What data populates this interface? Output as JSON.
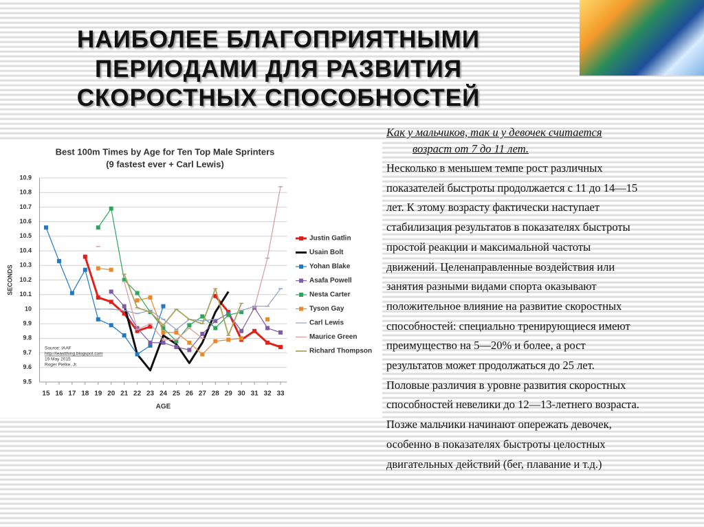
{
  "slide": {
    "title": [
      "НАИБОЛЕЕ БЛАГОПРИЯТНЫМИ",
      "ПЕРИОДАМИ ДЛЯ РАЗВИТИЯ",
      "СКОРОСТНЫХ СПОСОБНОСТЕЙ"
    ]
  },
  "text": {
    "intro": [
      "Как у мальчиков, так и у девочек считается",
      "возраст от 7 до 11 лет."
    ],
    "lines": [
      "Несколько в меньшем темпе рост различных",
      "показателей быстроты продолжается с 11 до 14—15",
      "лет.  К этому возрасту фактически наступает",
      "стабилизация результатов в показателях быстроты",
      "простой реакции и максимальной частоты",
      "движений.  Целенаправленные воздействия или",
      "занятия разными видами спорта оказывают",
      "положительное влияние на развитие скоростных",
      "способностей: специально тренирующиеся имеют",
      "преимущество на 5—20% и более, а рост",
      "результатов может продолжаться до 25 лет.",
      "Половые различия в уровне развития скоростных",
      "способностей невелики до 12—13-летнего возраста.",
      "Позже мальчики начинают опережать девочек,",
      "особенно в показателях быстроты целостных",
      "двигательных действий (бег, плавание и т.д.)"
    ]
  },
  "chart_data": {
    "type": "line",
    "title": "Best 100m Times by Age for Ten Top Male Sprinters",
    "subtitle": "(9 fastest ever + Carl Lewis)",
    "y_label": "SECONDS",
    "x_label": "AGE",
    "source": [
      "Source: IAAF",
      "http://leastthing.blogspot.com",
      "19 May 2015",
      "Roger Pielke, Jr."
    ],
    "x": [
      15,
      16,
      17,
      18,
      19,
      20,
      21,
      22,
      23,
      24,
      25,
      26,
      27,
      28,
      29,
      30,
      31,
      32,
      33
    ],
    "xlim": [
      14.5,
      33.5
    ],
    "xticks": [
      15,
      16,
      17,
      18,
      19,
      20,
      21,
      22,
      23,
      24,
      25,
      26,
      27,
      28,
      29,
      30,
      31,
      32,
      33
    ],
    "ylim": [
      9.5,
      10.9
    ],
    "yticks": [
      9.5,
      9.6,
      9.7,
      9.8,
      9.9,
      10,
      10.1,
      10.2,
      10.3,
      10.4,
      10.5,
      10.6,
      10.7,
      10.8,
      10.9
    ],
    "grid": true,
    "series": [
      {
        "name": "Justin Gatlin",
        "color": "#e0201b",
        "marker": "square",
        "width": 3,
        "values": [
          null,
          null,
          null,
          10.36,
          10.08,
          10.05,
          9.97,
          9.85,
          9.88,
          null,
          null,
          null,
          null,
          10.09,
          9.98,
          9.79,
          9.85,
          9.77,
          9.74
        ]
      },
      {
        "name": "Usain Bolt",
        "color": "#111111",
        "marker": "none",
        "width": 3,
        "values": [
          null,
          null,
          null,
          null,
          null,
          null,
          10.03,
          9.69,
          9.58,
          9.82,
          9.76,
          9.63,
          9.77,
          9.98,
          10.12,
          null,
          null,
          null,
          null
        ]
      },
      {
        "name": "Yohan Blake",
        "color": "#2179c2",
        "marker": "square",
        "width": 1.2,
        "values": [
          10.56,
          10.33,
          10.11,
          10.27,
          9.93,
          9.89,
          9.82,
          9.69,
          9.75,
          10.02,
          null,
          null,
          null,
          null,
          null,
          null,
          null,
          null,
          null
        ]
      },
      {
        "name": "Asafa Powell",
        "color": "#7d5ba6",
        "marker": "square",
        "width": 1.2,
        "values": [
          null,
          null,
          null,
          null,
          null,
          10.12,
          10.02,
          9.87,
          9.77,
          9.77,
          9.74,
          9.72,
          9.83,
          9.92,
          9.97,
          9.85,
          10.01,
          9.87,
          9.84
        ]
      },
      {
        "name": "Nesta Carter",
        "color": "#2da55a",
        "marker": "square",
        "width": 1.2,
        "values": [
          null,
          null,
          null,
          null,
          10.56,
          10.69,
          10.2,
          10.11,
          9.98,
          9.87,
          9.78,
          9.89,
          9.95,
          9.87,
          9.96,
          9.98,
          null,
          null,
          null
        ]
      },
      {
        "name": "Tyson Gay",
        "color": "#e88a2b",
        "marker": "square",
        "width": 1.2,
        "values": [
          null,
          null,
          null,
          null,
          10.28,
          10.27,
          null,
          10.06,
          10.08,
          9.84,
          9.84,
          9.77,
          9.69,
          9.78,
          9.79,
          9.8,
          null,
          9.93,
          null
        ]
      },
      {
        "name": "Carl Lewis",
        "color": "#8ea0c8",
        "marker": "dash",
        "width": 1.2,
        "values": [
          null,
          null,
          null,
          null,
          10,
          10,
          9.99,
          9.97,
          9.99,
          9.93,
          9.86,
          9.93,
          9.92,
          9.93,
          null,
          9.99,
          10.02,
          10.02,
          10.14
        ]
      },
      {
        "name": "Maurice Green",
        "color": "#d89a9a",
        "marker": "dash",
        "width": 1.2,
        "values": [
          null,
          null,
          null,
          null,
          10.43,
          null,
          10.19,
          9.86,
          9.9,
          9.79,
          9.79,
          9.87,
          9.8,
          null,
          null,
          null,
          10.01,
          10.35,
          10.84
        ]
      },
      {
        "name": "Richard Thompson",
        "color": "#a9a35e",
        "marker": "dash",
        "width": 1.8,
        "values": [
          null,
          null,
          null,
          null,
          null,
          null,
          10.24,
          10.01,
          9.98,
          9.89,
          10,
          9.93,
          9.9,
          10.14,
          9.82,
          10.04,
          null,
          null,
          null
        ]
      }
    ]
  }
}
